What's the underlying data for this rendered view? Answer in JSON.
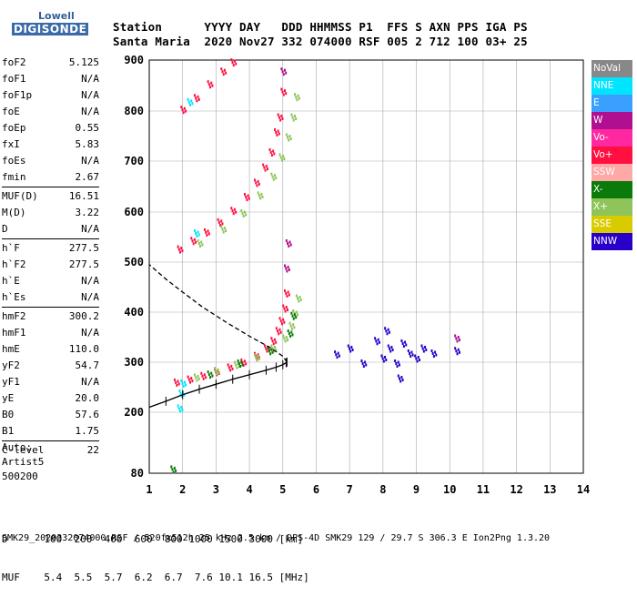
{
  "logo": {
    "top": "Lowell",
    "bottom": "DIGISONDE"
  },
  "header": {
    "line1": "Station      YYYY DAY   DDD HHMMSS P1  FFS S AXN PPS IGA PS",
    "line2": "Santa Maria  2020 Nov27 332 074000 RSF 005 2 712 100 03+ 25"
  },
  "params_a": [
    {
      "k": "foF2",
      "v": "5.125"
    },
    {
      "k": "foF1",
      "v": "N/A"
    },
    {
      "k": "foF1p",
      "v": "N/A"
    },
    {
      "k": "foE",
      "v": "N/A"
    },
    {
      "k": "foEp",
      "v": "0.55"
    },
    {
      "k": "fxI",
      "v": "5.83"
    },
    {
      "k": "foEs",
      "v": "N/A"
    },
    {
      "k": "fmin",
      "v": "2.67"
    }
  ],
  "params_b": [
    {
      "k": "MUF(D)",
      "v": "16.51"
    },
    {
      "k": "M(D)",
      "v": "3.22"
    },
    {
      "k": "D",
      "v": "N/A"
    }
  ],
  "params_c": [
    {
      "k": "h`F",
      "v": "277.5"
    },
    {
      "k": "h`F2",
      "v": "277.5"
    },
    {
      "k": "h`E",
      "v": "N/A"
    },
    {
      "k": "h`Es",
      "v": "N/A"
    }
  ],
  "params_d": [
    {
      "k": "hmF2",
      "v": "300.2"
    },
    {
      "k": "hmF1",
      "v": "N/A"
    },
    {
      "k": "hmE",
      "v": "110.0"
    },
    {
      "k": "yF2",
      "v": "54.7"
    },
    {
      "k": "yF1",
      "v": "N/A"
    },
    {
      "k": "yE",
      "v": "20.0"
    },
    {
      "k": "B0",
      "v": "57.6"
    },
    {
      "k": "B1",
      "v": "1.75"
    }
  ],
  "params_e": [
    {
      "k": "C-level",
      "v": "22"
    }
  ],
  "auto": [
    "Auto:",
    "Artist5",
    "500200"
  ],
  "legend": [
    {
      "label": "NoVal",
      "color": "#888888"
    },
    {
      "label": "NNE",
      "color": "#00e5ff"
    },
    {
      "label": "E",
      "color": "#3aa0ff"
    },
    {
      "label": "W",
      "color": "#b0108f"
    },
    {
      "label": "Vo-",
      "color": "#ff28a0"
    },
    {
      "label": "Vo+",
      "color": "#ff1040"
    },
    {
      "label": "SSW",
      "color": "#ffa8a8"
    },
    {
      "label": "X-",
      "color": "#0a7a0a"
    },
    {
      "label": "X+",
      "color": "#8ec45a"
    },
    {
      "label": "SSE",
      "color": "#d8cc00"
    },
    {
      "label": "NNW",
      "color": "#2800c8"
    }
  ],
  "footer": {
    "line1": "D      100  200  400  600  800 1000 1500 3000 [km]",
    "line2": "MUF    5.4  5.5  5.7  6.2  6.7  7.6 10.1 16.5 [MHz]",
    "line3": "SMK29_2020332074000.RSF / 520fx512h 25 kHz 2.5 km / DPS-4D SMK29 129 / 29.7 S 306.3 E Ion2Png 1.3.20"
  },
  "chart_data": {
    "type": "scatter",
    "xlim": [
      1,
      14
    ],
    "ylim": [
      80,
      900
    ],
    "x_ticks": [
      1,
      2,
      3,
      4,
      5,
      6,
      7,
      8,
      9,
      10,
      11,
      12,
      13,
      14
    ],
    "y_ticks": [
      80,
      200,
      300,
      400,
      500,
      600,
      700,
      800,
      900
    ],
    "grid": true,
    "series": [
      {
        "name": "Vo+",
        "color": "#ff1040",
        "points": [
          [
            1.8,
            262
          ],
          [
            2.2,
            268
          ],
          [
            2.6,
            275
          ],
          [
            3.0,
            283
          ],
          [
            3.4,
            292
          ],
          [
            3.8,
            302
          ],
          [
            4.2,
            315
          ],
          [
            4.5,
            330
          ],
          [
            4.7,
            345
          ],
          [
            4.85,
            365
          ],
          [
            4.95,
            385
          ],
          [
            5.05,
            410
          ],
          [
            5.1,
            440
          ],
          [
            1.9,
            528
          ],
          [
            2.3,
            545
          ],
          [
            2.7,
            562
          ],
          [
            3.1,
            582
          ],
          [
            3.5,
            605
          ],
          [
            3.9,
            632
          ],
          [
            4.2,
            660
          ],
          [
            4.45,
            690
          ],
          [
            4.65,
            720
          ],
          [
            4.8,
            760
          ],
          [
            4.9,
            790
          ],
          [
            5.0,
            840
          ],
          [
            2.0,
            805
          ],
          [
            2.4,
            828
          ],
          [
            2.8,
            855
          ],
          [
            3.2,
            880
          ],
          [
            3.5,
            898
          ]
        ]
      },
      {
        "name": "X+",
        "color": "#8ec45a",
        "points": [
          [
            2.4,
            272
          ],
          [
            3.0,
            285
          ],
          [
            3.6,
            297
          ],
          [
            4.2,
            312
          ],
          [
            4.7,
            330
          ],
          [
            5.05,
            350
          ],
          [
            5.25,
            375
          ],
          [
            5.35,
            400
          ],
          [
            5.45,
            430
          ],
          [
            2.5,
            540
          ],
          [
            3.2,
            568
          ],
          [
            3.8,
            600
          ],
          [
            4.3,
            635
          ],
          [
            4.7,
            672
          ],
          [
            4.95,
            710
          ],
          [
            5.15,
            750
          ],
          [
            5.3,
            790
          ],
          [
            5.4,
            830
          ]
        ]
      },
      {
        "name": "X-",
        "color": "#0a7a0a",
        "points": [
          [
            1.7,
            90
          ],
          [
            2.8,
            278
          ],
          [
            3.7,
            300
          ],
          [
            4.6,
            325
          ],
          [
            5.2,
            360
          ],
          [
            5.3,
            395
          ]
        ]
      },
      {
        "name": "NNW",
        "color": "#2800c8",
        "points": [
          [
            6.6,
            318
          ],
          [
            7.0,
            330
          ],
          [
            7.4,
            300
          ],
          [
            7.8,
            345
          ],
          [
            8.0,
            310
          ],
          [
            8.2,
            330
          ],
          [
            8.4,
            300
          ],
          [
            8.6,
            340
          ],
          [
            8.8,
            320
          ],
          [
            9.0,
            310
          ],
          [
            9.2,
            330
          ],
          [
            9.5,
            320
          ],
          [
            10.2,
            325
          ],
          [
            8.1,
            365
          ],
          [
            8.5,
            270
          ]
        ]
      },
      {
        "name": "NNE",
        "color": "#00e5ff",
        "points": [
          [
            1.9,
            210
          ],
          [
            1.95,
            240
          ],
          [
            2.0,
            260
          ],
          [
            2.4,
            560
          ],
          [
            2.2,
            820
          ]
        ]
      },
      {
        "name": "W",
        "color": "#b0108f",
        "points": [
          [
            5.1,
            490
          ],
          [
            5.15,
            540
          ],
          [
            10.2,
            350
          ],
          [
            5.0,
            880
          ]
        ]
      }
    ],
    "profile_x": [
      1.0,
      1.5,
      2.0,
      2.5,
      3.0,
      3.5,
      4.0,
      4.5,
      4.8,
      5.0,
      5.1,
      5.125
    ],
    "profile_y": [
      210,
      222,
      235,
      246,
      256,
      266,
      275,
      284,
      290,
      295,
      299,
      300.2
    ],
    "extrap_x": [
      5.125,
      5.0,
      4.6,
      4.0,
      3.3,
      2.6,
      2.0,
      1.5,
      1.0
    ],
    "extrap_y": [
      300.2,
      312,
      330,
      352,
      380,
      410,
      440,
      466,
      495
    ]
  }
}
